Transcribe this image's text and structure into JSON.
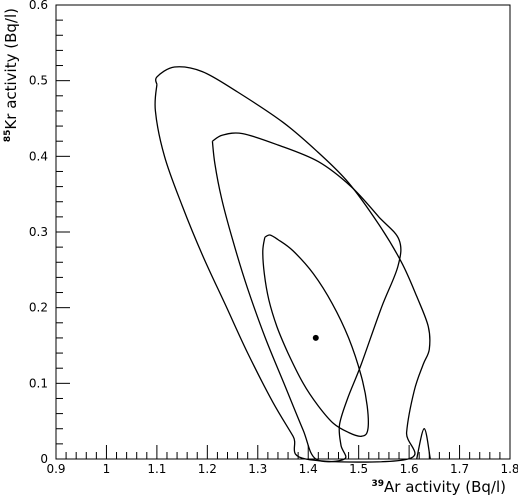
{
  "chart_data": {
    "type": "contour",
    "xlabel": {
      "sup": "39",
      "text": "Ar activity (Bq/l)"
    },
    "ylabel": {
      "sup": "85",
      "text": "Kr activity (Bq/l)"
    },
    "xlim": [
      0.9,
      1.8
    ],
    "ylim": [
      0,
      0.6
    ],
    "xticks": [
      "0.9",
      "1",
      "1.1",
      "1.2",
      "1.3",
      "1.4",
      "1.5",
      "1.6",
      "1.7",
      "1.8"
    ],
    "yticks": [
      "0",
      "0.1",
      "0.2",
      "0.3",
      "0.4",
      "0.5",
      "0.6"
    ],
    "best_fit": {
      "x": 1.415,
      "y": 0.16
    },
    "contours": [
      {
        "name": "inner",
        "points": [
          [
            1.314,
            0.293
          ],
          [
            1.31,
            0.275
          ],
          [
            1.313,
            0.245
          ],
          [
            1.322,
            0.21
          ],
          [
            1.338,
            0.175
          ],
          [
            1.36,
            0.14
          ],
          [
            1.39,
            0.1
          ],
          [
            1.42,
            0.07
          ],
          [
            1.45,
            0.047
          ],
          [
            1.48,
            0.035
          ],
          [
            1.505,
            0.03
          ],
          [
            1.518,
            0.038
          ],
          [
            1.517,
            0.07
          ],
          [
            1.505,
            0.11
          ],
          [
            1.48,
            0.16
          ],
          [
            1.448,
            0.205
          ],
          [
            1.41,
            0.245
          ],
          [
            1.37,
            0.275
          ],
          [
            1.34,
            0.29
          ],
          [
            1.324,
            0.296
          ],
          [
            1.314,
            0.293
          ]
        ]
      },
      {
        "name": "middle",
        "points": [
          [
            1.21,
            0.42
          ],
          [
            1.215,
            0.39
          ],
          [
            1.228,
            0.345
          ],
          [
            1.25,
            0.29
          ],
          [
            1.28,
            0.225
          ],
          [
            1.315,
            0.16
          ],
          [
            1.355,
            0.095
          ],
          [
            1.39,
            0.038
          ],
          [
            1.415,
            0.0
          ],
          [
            1.472,
            0.0
          ],
          [
            1.465,
            0.018
          ],
          [
            1.462,
            0.045
          ],
          [
            1.478,
            0.08
          ],
          [
            1.505,
            0.125
          ],
          [
            1.545,
            0.2
          ],
          [
            1.578,
            0.255
          ],
          [
            1.58,
            0.29
          ],
          [
            1.54,
            0.32
          ],
          [
            1.485,
            0.36
          ],
          [
            1.42,
            0.393
          ],
          [
            1.34,
            0.415
          ],
          [
            1.27,
            0.43
          ],
          [
            1.23,
            0.428
          ],
          [
            1.21,
            0.42
          ]
        ]
      },
      {
        "name": "outer",
        "points": [
          [
            1.1,
            0.495
          ],
          [
            1.097,
            0.46
          ],
          [
            1.115,
            0.4
          ],
          [
            1.15,
            0.335
          ],
          [
            1.19,
            0.27
          ],
          [
            1.235,
            0.205
          ],
          [
            1.28,
            0.14
          ],
          [
            1.33,
            0.075
          ],
          [
            1.37,
            0.03
          ],
          [
            1.395,
            0.0
          ],
          [
            1.598,
            0.0
          ],
          [
            1.595,
            0.035
          ],
          [
            1.61,
            0.09
          ],
          [
            1.628,
            0.125
          ],
          [
            1.64,
            0.145
          ],
          [
            1.638,
            0.175
          ],
          [
            1.615,
            0.215
          ],
          [
            1.585,
            0.26
          ],
          [
            1.54,
            0.31
          ],
          [
            1.48,
            0.365
          ],
          [
            1.42,
            0.405
          ],
          [
            1.35,
            0.445
          ],
          [
            1.26,
            0.485
          ],
          [
            1.19,
            0.512
          ],
          [
            1.135,
            0.518
          ],
          [
            1.1,
            0.505
          ],
          [
            1.1,
            0.495
          ]
        ]
      },
      {
        "name": "outer-tail",
        "points": [
          [
            1.615,
            0.0
          ],
          [
            1.63,
            0.04
          ],
          [
            1.642,
            0.0
          ]
        ]
      }
    ]
  }
}
